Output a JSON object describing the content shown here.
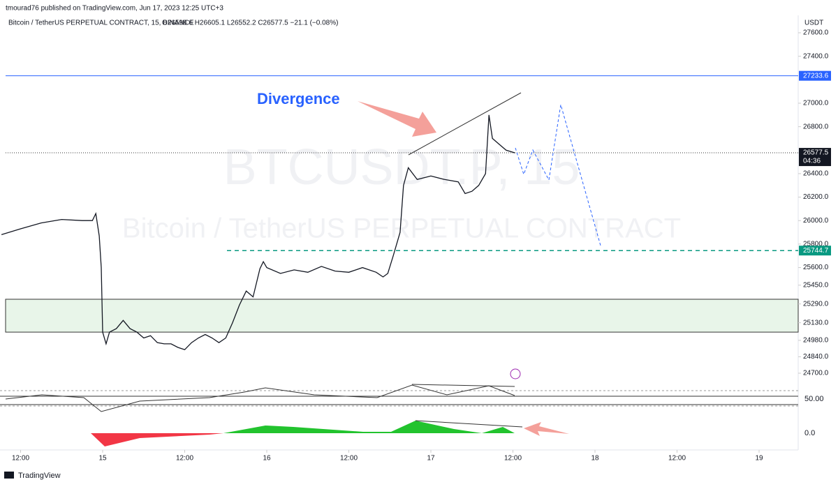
{
  "header": {
    "publisher": "tmourad76 published on TradingView.com, Jun 17, 2023 12:25 UTC+3"
  },
  "legend": {
    "symbol": "Bitcoin / TetherUS PERPETUAL CONTRACT, 15, BINANCE",
    "ohlc": "O26598.6 H26605.1 L26552.2 C26577.5 −21.1 (−0.08%)"
  },
  "watermark": {
    "ticker": "BTCUSDT.P, 15",
    "name": "Bitcoin / TetherUS PERPETUAL CONTRACT"
  },
  "annotation": "Divergence",
  "chart": {
    "currency": "USDT",
    "ylim": [
      24700,
      27600
    ],
    "yticks": [
      {
        "value": 27600,
        "label": "27600.0"
      },
      {
        "value": 27400,
        "label": "27400.0"
      },
      {
        "value": 27000,
        "label": "27000.0"
      },
      {
        "value": 26800,
        "label": "26800.0"
      },
      {
        "value": 26400,
        "label": "26400.0"
      },
      {
        "value": 26200,
        "label": "26200.0"
      },
      {
        "value": 26000,
        "label": "26000.0"
      },
      {
        "value": 25800,
        "label": "25800.0"
      },
      {
        "value": 25600,
        "label": "25600.0"
      },
      {
        "value": 25450,
        "label": "25450.0"
      },
      {
        "value": 25290,
        "label": "25290.0"
      },
      {
        "value": 25130,
        "label": "25130.0"
      },
      {
        "value": 24980,
        "label": "24980.0"
      },
      {
        "value": 24840,
        "label": "24840.0"
      },
      {
        "value": 24700,
        "label": "24700.0"
      }
    ],
    "xticks": [
      {
        "value": -12,
        "label": "12:00"
      },
      {
        "value": 0,
        "label": "15"
      },
      {
        "value": 12,
        "label": "12:00"
      },
      {
        "value": 24,
        "label": "16"
      },
      {
        "value": 36,
        "label": "12:00"
      },
      {
        "value": 48,
        "label": "17"
      },
      {
        "value": 60,
        "label": "12:00"
      },
      {
        "value": 72,
        "label": "18"
      },
      {
        "value": 84,
        "label": "12:00"
      },
      {
        "value": 96,
        "label": "19"
      }
    ],
    "resistance": {
      "value": 27233.6,
      "label": "27233.6"
    },
    "last": {
      "value": 26577.5,
      "label": "26577.5",
      "countdown": "04:36"
    },
    "support": {
      "value": 25744.7,
      "label": "25744.7"
    },
    "zone": [
      25050,
      25330
    ],
    "series": {
      "hours": [
        -14.8,
        -12,
        -9,
        -6,
        -3,
        -1.5,
        -1,
        -0.5,
        -0.2,
        0,
        0.5,
        1,
        2,
        3,
        4,
        5,
        6,
        7,
        8,
        9,
        10,
        11,
        12,
        13,
        14,
        15,
        16,
        17,
        18,
        19,
        20,
        21,
        22,
        23,
        23.5,
        24,
        26,
        28,
        30,
        32,
        34,
        36,
        38,
        40,
        41,
        41.7,
        42.5,
        43.5,
        44,
        44.7,
        46,
        48,
        50,
        52,
        53,
        54,
        55,
        56,
        56.5,
        57,
        58,
        59,
        60.3
      ],
      "close": [
        25880,
        25930,
        25980,
        26010,
        26000,
        26000,
        26060,
        25870,
        25600,
        25050,
        24950,
        25050,
        25080,
        25150,
        25080,
        25050,
        25000,
        25020,
        24960,
        24950,
        24950,
        24920,
        24900,
        24960,
        25000,
        25030,
        25000,
        24960,
        25000,
        25130,
        25280,
        25400,
        25350,
        25590,
        25650,
        25600,
        25550,
        25580,
        25560,
        25610,
        25570,
        25560,
        25600,
        25560,
        25520,
        25550,
        25700,
        25900,
        26300,
        26450,
        26350,
        26380,
        26350,
        26330,
        26230,
        26250,
        26300,
        26400,
        26900,
        26700,
        26650,
        26600,
        26577.5
      ]
    },
    "rsi_label": "50.00",
    "osc_label": "0.0"
  },
  "footer": "TradingView"
}
